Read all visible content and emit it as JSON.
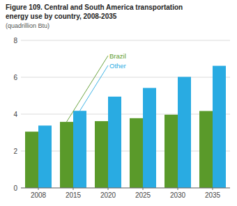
{
  "chart_data": {
    "type": "bar",
    "title": [
      "Figure 109. Central and South America transportation",
      "energy use by country, 2008-2035"
    ],
    "subtitle": "(quadrillion Btu)",
    "categories": [
      "2008",
      "2015",
      "2020",
      "2025",
      "2030",
      "2035"
    ],
    "series": [
      {
        "name": "Brazil",
        "color": "#5a9a2a",
        "values": [
          3.05,
          3.58,
          3.62,
          3.78,
          3.97,
          4.17
        ]
      },
      {
        "name": "Other",
        "color": "#29abe2",
        "values": [
          3.38,
          4.18,
          4.95,
          5.42,
          6.02,
          6.62
        ]
      }
    ],
    "ylim": [
      0,
      8
    ],
    "yticks": [
      0,
      2,
      4,
      6,
      8
    ],
    "grid": true
  }
}
